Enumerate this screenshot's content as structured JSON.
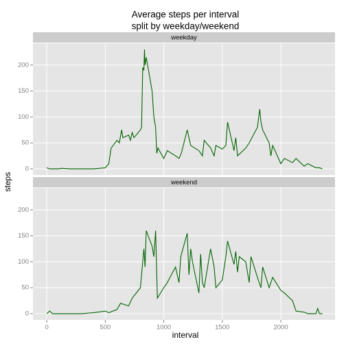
{
  "chart_data": {
    "type": "line",
    "title": [
      "Average steps per interval",
      "split by weekday/weekend"
    ],
    "x_label": "interval",
    "y_label": "steps",
    "xlim": [
      -118,
      2463
    ],
    "xticks": [
      0,
      500,
      1000,
      1500,
      2000
    ],
    "ylim": [
      -12,
      242
    ],
    "yticks": [
      0,
      50,
      100,
      150,
      200
    ],
    "grid": true,
    "series": [
      {
        "name": "weekday",
        "color": "#006400",
        "x": [
          0,
          25,
          50,
          100,
          125,
          200,
          300,
          400,
          450,
          500,
          530,
          550,
          600,
          620,
          640,
          650,
          700,
          715,
          730,
          745,
          800,
          810,
          820,
          830,
          835,
          840,
          850,
          900,
          915,
          930,
          940,
          950,
          1000,
          1030,
          1100,
          1130,
          1150,
          1200,
          1230,
          1300,
          1330,
          1345,
          1400,
          1430,
          1445,
          1500,
          1530,
          1545,
          1600,
          1615,
          1630,
          1700,
          1730,
          1800,
          1820,
          1830,
          1845,
          1900,
          1915,
          1930,
          2000,
          2030,
          2100,
          2130,
          2200,
          2230,
          2300,
          2330,
          2355
        ],
        "values": [
          2,
          0,
          0,
          0,
          1,
          0,
          0,
          0,
          1,
          2,
          10,
          40,
          55,
          50,
          75,
          60,
          65,
          55,
          70,
          60,
          75,
          80,
          195,
          190,
          230,
          200,
          215,
          150,
          100,
          80,
          30,
          40,
          20,
          35,
          25,
          20,
          30,
          75,
          45,
          35,
          25,
          55,
          40,
          25,
          45,
          38,
          45,
          90,
          35,
          60,
          25,
          40,
          50,
          80,
          115,
          90,
          75,
          50,
          25,
          45,
          10,
          20,
          12,
          20,
          5,
          10,
          2,
          2,
          0
        ]
      },
      {
        "name": "weekend",
        "color": "#006400",
        "x": [
          0,
          25,
          50,
          100,
          200,
          300,
          400,
          500,
          530,
          600,
          630,
          700,
          730,
          800,
          830,
          840,
          850,
          900,
          915,
          930,
          945,
          1000,
          1030,
          1100,
          1115,
          1130,
          1145,
          1200,
          1215,
          1230,
          1245,
          1300,
          1315,
          1330,
          1345,
          1400,
          1430,
          1445,
          1500,
          1530,
          1545,
          1600,
          1615,
          1630,
          1645,
          1700,
          1730,
          1745,
          1800,
          1830,
          1845,
          1900,
          1930,
          2000,
          2030,
          2100,
          2130,
          2200,
          2230,
          2300,
          2315,
          2330,
          2355
        ],
        "values": [
          0,
          5,
          0,
          0,
          0,
          0,
          2,
          5,
          2,
          8,
          20,
          15,
          30,
          50,
          125,
          90,
          160,
          130,
          110,
          160,
          30,
          50,
          60,
          90,
          75,
          60,
          110,
          155,
          75,
          125,
          100,
          40,
          115,
          60,
          50,
          125,
          90,
          50,
          65,
          110,
          140,
          95,
          120,
          80,
          110,
          100,
          60,
          110,
          70,
          50,
          90,
          50,
          70,
          45,
          40,
          25,
          5,
          3,
          0,
          0,
          10,
          0,
          0
        ]
      }
    ]
  }
}
